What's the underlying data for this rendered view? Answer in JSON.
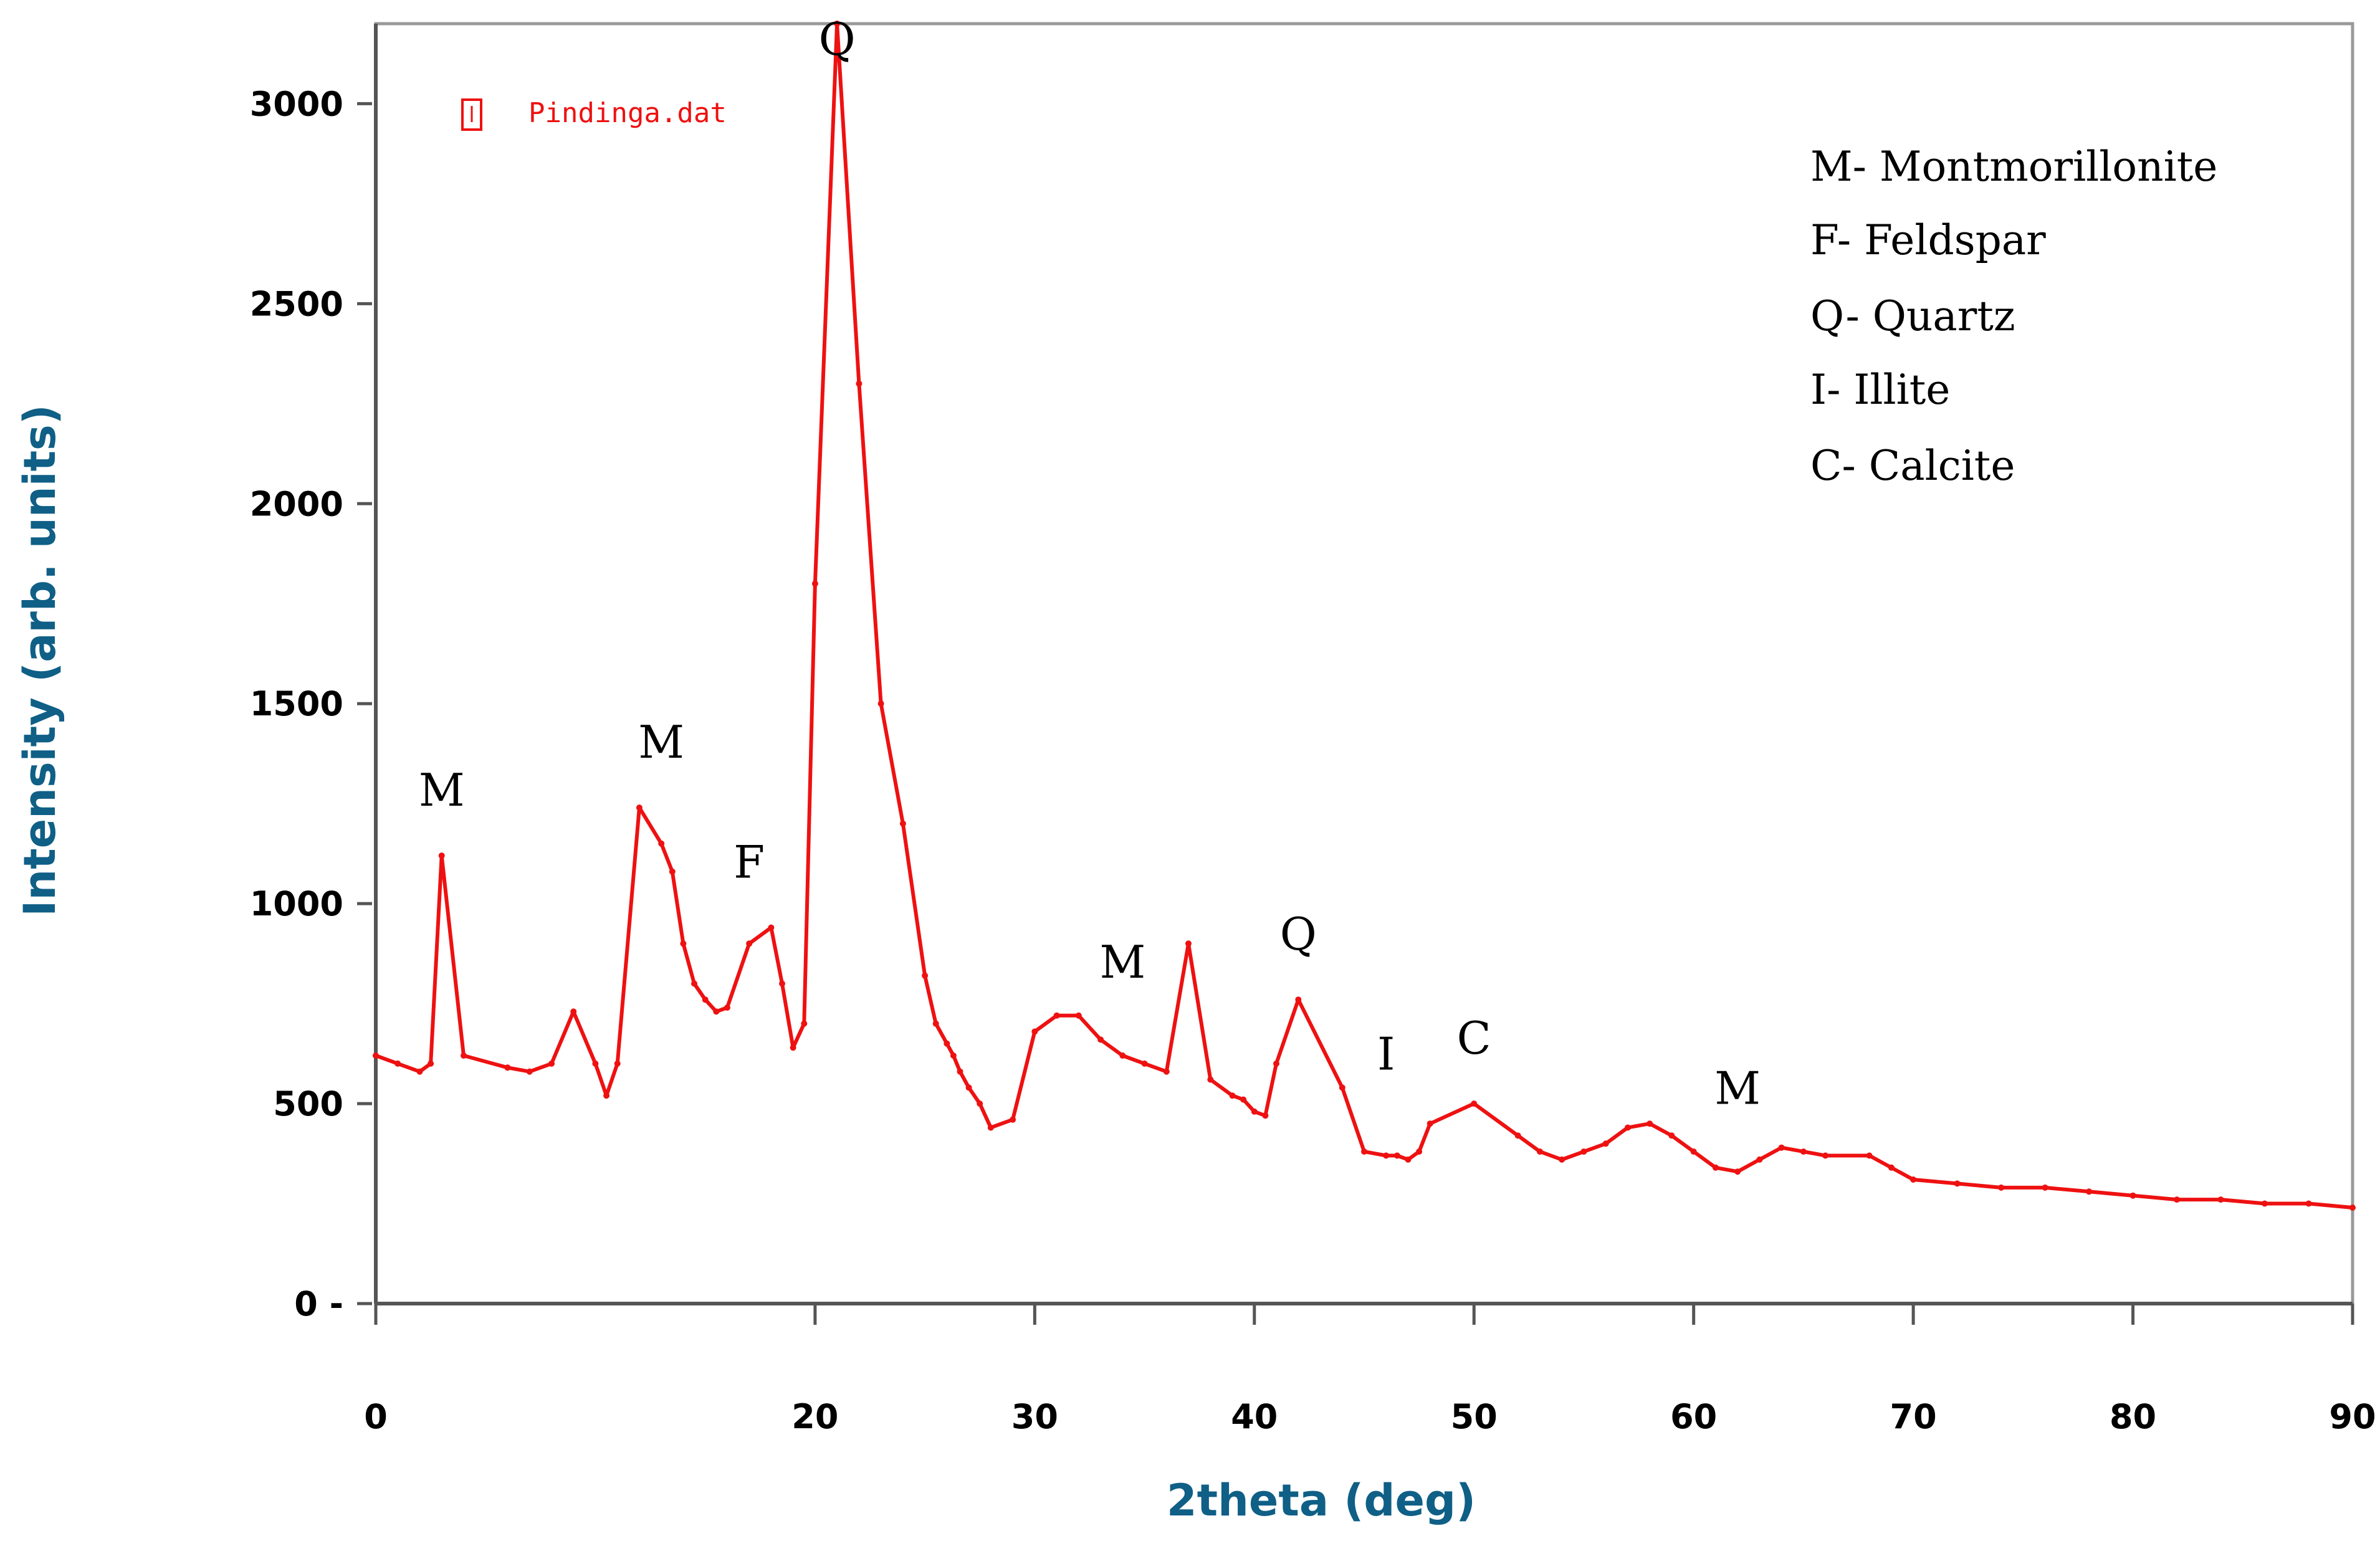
{
  "chart_data": {
    "type": "line",
    "title": "",
    "xlabel": "2theta (deg)",
    "ylabel": "Intensity (arb. units)",
    "xlim": [
      0,
      90
    ],
    "ylim": [
      0,
      3200
    ],
    "x_ticks": [
      0,
      20,
      30,
      40,
      50,
      60,
      70,
      80,
      90
    ],
    "x_tick_labels": [
      "0",
      "20",
      "30",
      "40",
      "50",
      "60",
      "70",
      "80",
      "90"
    ],
    "y_ticks": [
      0,
      500,
      1000,
      1500,
      2000,
      2500,
      3000
    ],
    "y_tick_labels": [
      "0 -",
      "500",
      "1000",
      "1500",
      "2000",
      "2500",
      "3000"
    ],
    "grid": false,
    "series": [
      {
        "name": "Pindinga.dat",
        "color": "#ee1111",
        "x": [
          0,
          1,
          2,
          2.5,
          3,
          4,
          6,
          7,
          8,
          9,
          10,
          10.5,
          11,
          12,
          13,
          13.5,
          14,
          14.5,
          15,
          15.5,
          16,
          17,
          18,
          18.5,
          19,
          19.5,
          20,
          21,
          22,
          23,
          24,
          25,
          25.5,
          26,
          26.3,
          26.6,
          27,
          27.5,
          28,
          29,
          30,
          31,
          32,
          33,
          34,
          35,
          36,
          37,
          38,
          39,
          39.5,
          40,
          40.5,
          41,
          42,
          44,
          45,
          46,
          46.5,
          47,
          47.5,
          48,
          50,
          52,
          53,
          54,
          55,
          56,
          57,
          58,
          59,
          60,
          61,
          62,
          63,
          64,
          65,
          66,
          68,
          69,
          70,
          72,
          74,
          76,
          78,
          80,
          82,
          84,
          86,
          88,
          90
        ],
        "y": [
          620,
          600,
          580,
          600,
          1120,
          620,
          590,
          580,
          600,
          730,
          600,
          520,
          600,
          1240,
          1150,
          1080,
          900,
          800,
          760,
          730,
          740,
          900,
          940,
          800,
          640,
          700,
          1800,
          3200,
          2300,
          1500,
          1200,
          820,
          700,
          650,
          620,
          580,
          540,
          500,
          440,
          460,
          680,
          720,
          720,
          660,
          620,
          600,
          580,
          900,
          560,
          520,
          510,
          480,
          470,
          600,
          760,
          540,
          380,
          370,
          370,
          360,
          380,
          450,
          500,
          420,
          380,
          360,
          380,
          400,
          440,
          450,
          420,
          380,
          340,
          330,
          360,
          390,
          380,
          370,
          370,
          340,
          310,
          300,
          290,
          290,
          280,
          270,
          260,
          260,
          250,
          250,
          240
        ]
      }
    ],
    "peak_labels": [
      {
        "text": "M",
        "x": 3
      },
      {
        "text": "M",
        "x": 13
      },
      {
        "text": "F",
        "x": 17
      },
      {
        "text": "Q",
        "x": 21
      },
      {
        "text": "M",
        "x": 34
      },
      {
        "text": "Q",
        "x": 42
      },
      {
        "text": "I",
        "x": 46
      },
      {
        "text": "C",
        "x": 50
      },
      {
        "text": "M",
        "x": 62
      }
    ],
    "annotation_legend": [
      "M- Montmorillonite",
      "F- Feldspar",
      "Q- Quartz",
      "I- Illite",
      "C- Calcite"
    ]
  }
}
